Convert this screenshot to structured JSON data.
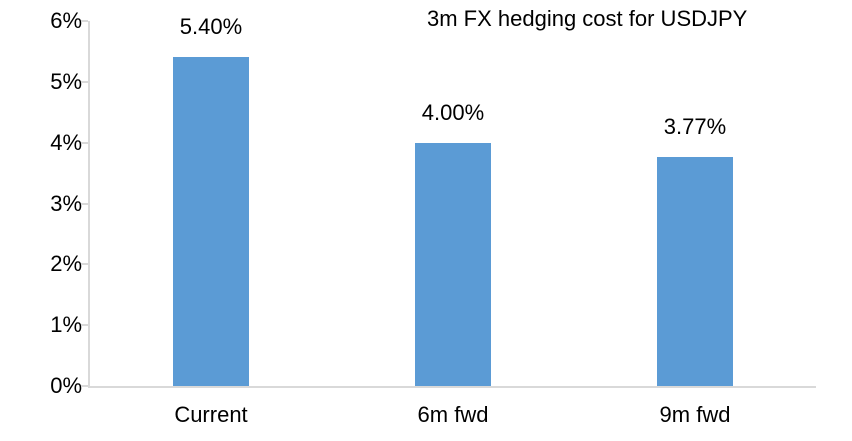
{
  "chart_data": {
    "type": "bar",
    "title": "3m FX hedging cost for USDJPY",
    "categories": [
      "Current",
      "6m fwd",
      "9m fwd"
    ],
    "values": [
      5.4,
      4.0,
      3.77
    ],
    "value_labels": [
      "5.40%",
      "4.00%",
      "3.77%"
    ],
    "xlabel": "",
    "ylabel": "",
    "ylim": [
      0,
      6
    ],
    "yticks": [
      0,
      1,
      2,
      3,
      4,
      5,
      6
    ],
    "ytick_labels": [
      "0%",
      "1%",
      "2%",
      "3%",
      "4%",
      "5%",
      "6%"
    ],
    "grid": false,
    "legend": "none",
    "colors": {
      "bar": "#5B9BD5",
      "axis": "#D9D9D9",
      "text": "#000000",
      "background": "#FFFFFF"
    }
  }
}
